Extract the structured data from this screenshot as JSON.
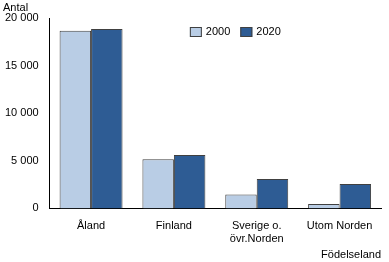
{
  "chart_data": {
    "type": "bar",
    "y_label": "Antal",
    "x_label": "Födelseland",
    "categories": [
      "Åland",
      "Finland",
      "Sverige o. övr.Norden",
      "Utom Norden"
    ],
    "series": [
      {
        "name": "2000",
        "color": "#b9cde5",
        "values": [
          18650,
          5150,
          1450,
          450
        ]
      },
      {
        "name": "2020",
        "color": "#2e5c94",
        "values": [
          18850,
          5600,
          3100,
          2550
        ]
      }
    ],
    "ylim": [
      0,
      20000
    ],
    "yticks": [
      {
        "value": 0,
        "label": "0"
      },
      {
        "value": 5000,
        "label": "5 000"
      },
      {
        "value": 10000,
        "label": "10 000"
      },
      {
        "value": 15000,
        "label": "15 000"
      },
      {
        "value": 20000,
        "label": "20 000"
      }
    ],
    "grid": false,
    "legend": "upper center"
  }
}
